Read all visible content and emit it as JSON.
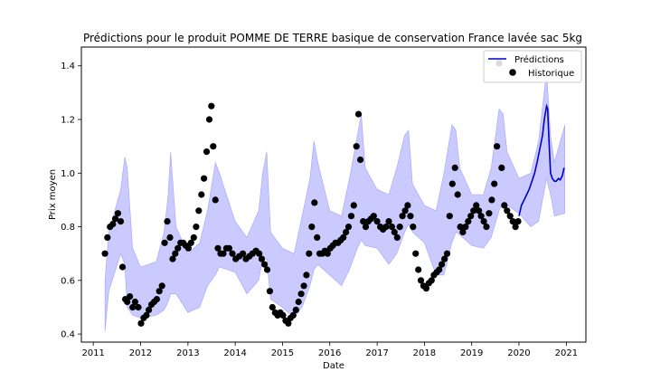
{
  "chart_data": {
    "type": "line",
    "title": "Prédictions pour le produit POMME DE TERRE basique de conservation France lavée sac 5kg",
    "xlabel": "Date",
    "ylabel": "Prix moyen",
    "xlim": [
      "2010-10-01",
      "2021-06-01"
    ],
    "ylim": [
      0.37,
      1.47
    ],
    "x_ticks": [
      "2011",
      "2012",
      "2013",
      "2014",
      "2015",
      "2016",
      "2017",
      "2018",
      "2019",
      "2020",
      "2021"
    ],
    "y_ticks": [
      "0.4",
      "0.6",
      "0.8",
      "1.0",
      "1.2",
      "1.4"
    ],
    "grid": false,
    "legend": {
      "position": "top-right",
      "entries": [
        "Prédictions",
        "Historique"
      ]
    },
    "colors": {
      "band": "#6666ff",
      "prediction": "#0000cc",
      "history": "#000000"
    },
    "series": [
      {
        "name": "Prédictions",
        "kind": "line",
        "x": [
          "2020-01-01",
          "2020-01-20",
          "2020-02-10",
          "2020-03-01",
          "2020-03-20",
          "2020-04-10",
          "2020-05-01",
          "2020-05-20",
          "2020-06-10",
          "2020-07-01",
          "2020-07-15",
          "2020-08-01",
          "2020-08-10",
          "2020-08-20",
          "2020-09-01",
          "2020-09-15",
          "2020-10-01",
          "2020-10-15",
          "2020-11-01",
          "2020-11-15",
          "2020-12-01",
          "2020-12-15"
        ],
        "y": [
          0.84,
          0.88,
          0.9,
          0.92,
          0.94,
          0.97,
          1.0,
          1.04,
          1.09,
          1.14,
          1.2,
          1.25,
          1.24,
          1.12,
          1.0,
          0.98,
          0.97,
          0.97,
          0.98,
          0.975,
          0.99,
          1.02
        ]
      },
      {
        "name": "band",
        "kind": "band",
        "x": [
          "2011-04-01",
          "2011-05-01",
          "2011-08-01",
          "2011-09-01",
          "2011-09-20",
          "2011-11-01",
          "2012-01-01",
          "2012-05-01",
          "2012-07-01",
          "2012-08-01",
          "2012-08-20",
          "2012-10-01",
          "2013-01-01",
          "2013-04-01",
          "2013-06-01",
          "2013-08-01",
          "2013-09-01",
          "2014-01-01",
          "2014-04-01",
          "2014-07-01",
          "2014-08-01",
          "2014-09-01",
          "2014-10-01",
          "2015-01-01",
          "2015-04-01",
          "2015-06-01",
          "2015-08-01",
          "2015-09-01",
          "2015-10-01",
          "2016-01-01",
          "2016-04-01",
          "2016-06-01",
          "2016-08-01",
          "2016-09-01",
          "2016-10-01",
          "2017-01-01",
          "2017-04-01",
          "2017-06-01",
          "2017-08-01",
          "2017-09-01",
          "2017-10-01",
          "2018-01-01",
          "2018-04-01",
          "2018-06-01",
          "2018-08-01",
          "2018-09-01",
          "2018-10-01",
          "2019-01-01",
          "2019-04-01",
          "2019-06-01",
          "2019-08-01",
          "2019-09-01",
          "2019-10-01",
          "2020-01-01",
          "2020-04-01",
          "2020-06-01",
          "2020-08-01",
          "2020-09-01",
          "2020-10-01",
          "2020-12-20"
        ],
        "lower": [
          0.41,
          0.56,
          0.7,
          0.66,
          0.5,
          0.47,
          0.46,
          0.47,
          0.49,
          0.52,
          0.55,
          0.55,
          0.48,
          0.5,
          0.58,
          0.62,
          0.65,
          0.63,
          0.55,
          0.6,
          0.68,
          0.68,
          0.53,
          0.5,
          0.46,
          0.5,
          0.58,
          0.64,
          0.66,
          0.62,
          0.58,
          0.64,
          0.72,
          0.75,
          0.73,
          0.72,
          0.66,
          0.7,
          0.78,
          0.81,
          0.78,
          0.74,
          0.62,
          0.62,
          0.74,
          0.78,
          0.77,
          0.73,
          0.72,
          0.76,
          0.86,
          0.89,
          0.88,
          0.85,
          0.8,
          0.82,
          0.98,
          0.92,
          0.84,
          0.85
        ],
        "upper": [
          0.6,
          0.78,
          0.94,
          1.06,
          1.02,
          0.72,
          0.65,
          0.67,
          0.78,
          0.92,
          1.08,
          0.8,
          0.7,
          0.74,
          0.86,
          1.04,
          1.0,
          0.82,
          0.76,
          0.86,
          1.0,
          1.08,
          0.78,
          0.72,
          0.7,
          0.84,
          0.98,
          1.12,
          1.04,
          0.86,
          0.84,
          0.98,
          1.14,
          1.22,
          1.02,
          0.94,
          0.92,
          1.02,
          1.14,
          1.16,
          0.96,
          0.88,
          0.86,
          1.0,
          1.18,
          1.16,
          1.02,
          0.92,
          0.92,
          1.02,
          1.24,
          1.22,
          1.08,
          0.98,
          1.0,
          1.12,
          1.38,
          1.14,
          1.04,
          1.18
        ]
      },
      {
        "name": "Historique",
        "kind": "scatter",
        "x": [
          "2011-04-01",
          "2011-04-20",
          "2011-05-10",
          "2011-06-01",
          "2011-06-20",
          "2011-07-10",
          "2011-08-01",
          "2011-08-15",
          "2011-09-05",
          "2011-09-20",
          "2011-10-10",
          "2011-11-01",
          "2011-11-20",
          "2011-12-15",
          "2012-01-05",
          "2012-01-25",
          "2012-02-15",
          "2012-03-05",
          "2012-03-25",
          "2012-04-15",
          "2012-05-05",
          "2012-05-25",
          "2012-06-15",
          "2012-07-05",
          "2012-07-25",
          "2012-08-15",
          "2012-09-05",
          "2012-09-25",
          "2012-10-15",
          "2012-11-05",
          "2012-11-25",
          "2012-12-15",
          "2013-01-05",
          "2013-01-25",
          "2013-02-15",
          "2013-03-05",
          "2013-03-25",
          "2013-04-15",
          "2013-05-05",
          "2013-05-25",
          "2013-06-15",
          "2013-07-01",
          "2013-07-15",
          "2013-08-01",
          "2013-08-20",
          "2013-09-10",
          "2013-10-01",
          "2013-10-25",
          "2013-11-15",
          "2013-12-10",
          "2014-01-05",
          "2014-02-01",
          "2014-03-01",
          "2014-03-25",
          "2014-04-20",
          "2014-05-15",
          "2014-06-10",
          "2014-07-05",
          "2014-07-25",
          "2014-08-15",
          "2014-09-05",
          "2014-09-25",
          "2014-10-15",
          "2014-11-05",
          "2014-11-25",
          "2014-12-15",
          "2015-01-05",
          "2015-01-25",
          "2015-02-15",
          "2015-03-05",
          "2015-03-25",
          "2015-04-15",
          "2015-05-05",
          "2015-05-25",
          "2015-06-15",
          "2015-07-05",
          "2015-07-25",
          "2015-08-15",
          "2015-09-05",
          "2015-09-25",
          "2015-10-15",
          "2015-11-05",
          "2015-11-25",
          "2015-12-15",
          "2016-01-05",
          "2016-01-25",
          "2016-02-15",
          "2016-03-05",
          "2016-03-25",
          "2016-04-15",
          "2016-05-05",
          "2016-05-25",
          "2016-06-15",
          "2016-07-05",
          "2016-07-25",
          "2016-08-10",
          "2016-08-25",
          "2016-09-15",
          "2016-10-05",
          "2016-10-25",
          "2016-11-15",
          "2016-12-05",
          "2017-01-01",
          "2017-01-25",
          "2017-02-15",
          "2017-03-10",
          "2017-04-01",
          "2017-04-25",
          "2017-05-15",
          "2017-06-05",
          "2017-06-25",
          "2017-07-15",
          "2017-08-05",
          "2017-08-25",
          "2017-09-15",
          "2017-10-05",
          "2017-10-25",
          "2017-11-15",
          "2017-12-05",
          "2017-12-25",
          "2018-01-15",
          "2018-02-05",
          "2018-02-25",
          "2018-03-15",
          "2018-04-05",
          "2018-04-25",
          "2018-05-15",
          "2018-06-05",
          "2018-06-25",
          "2018-07-15",
          "2018-08-05",
          "2018-08-25",
          "2018-09-15",
          "2018-10-05",
          "2018-10-25",
          "2018-11-15",
          "2018-12-05",
          "2018-12-25",
          "2019-01-15",
          "2019-02-05",
          "2019-02-25",
          "2019-03-15",
          "2019-04-05",
          "2019-04-25",
          "2019-05-15",
          "2019-06-05",
          "2019-06-25",
          "2019-07-15",
          "2019-08-01",
          "2019-08-20",
          "2019-09-10",
          "2019-10-01",
          "2019-10-25",
          "2019-11-15",
          "2019-12-05",
          "2019-12-25"
        ],
        "y": [
          0.7,
          0.76,
          0.8,
          0.81,
          0.83,
          0.85,
          0.82,
          0.65,
          0.53,
          0.52,
          0.54,
          0.5,
          0.52,
          0.5,
          0.44,
          0.46,
          0.47,
          0.49,
          0.51,
          0.52,
          0.53,
          0.56,
          0.58,
          0.74,
          0.82,
          0.76,
          0.68,
          0.7,
          0.72,
          0.74,
          0.74,
          0.73,
          0.72,
          0.74,
          0.76,
          0.8,
          0.86,
          0.92,
          0.98,
          1.08,
          1.2,
          1.25,
          1.1,
          0.9,
          0.72,
          0.7,
          0.7,
          0.72,
          0.72,
          0.7,
          0.68,
          0.69,
          0.7,
          0.68,
          0.69,
          0.7,
          0.71,
          0.7,
          0.68,
          0.66,
          0.64,
          0.56,
          0.5,
          0.48,
          0.47,
          0.48,
          0.47,
          0.45,
          0.44,
          0.46,
          0.47,
          0.49,
          0.52,
          0.55,
          0.58,
          0.62,
          0.7,
          0.8,
          0.89,
          0.76,
          0.7,
          0.7,
          0.71,
          0.7,
          0.72,
          0.73,
          0.74,
          0.74,
          0.75,
          0.76,
          0.78,
          0.8,
          0.84,
          0.88,
          1.1,
          1.22,
          1.05,
          0.82,
          0.8,
          0.82,
          0.83,
          0.84,
          0.82,
          0.8,
          0.79,
          0.8,
          0.82,
          0.8,
          0.78,
          0.76,
          0.8,
          0.84,
          0.86,
          0.88,
          0.84,
          0.8,
          0.7,
          0.64,
          0.6,
          0.58,
          0.57,
          0.59,
          0.6,
          0.62,
          0.63,
          0.64,
          0.66,
          0.68,
          0.7,
          0.84,
          0.96,
          1.02,
          0.92,
          0.8,
          0.78,
          0.8,
          0.82,
          0.84,
          0.86,
          0.88,
          0.86,
          0.84,
          0.82,
          0.8,
          0.85,
          0.9,
          0.96,
          1.1,
          1.41,
          1.02,
          0.88,
          0.86,
          0.84,
          0.82,
          0.8,
          0.82
        ]
      }
    ]
  }
}
